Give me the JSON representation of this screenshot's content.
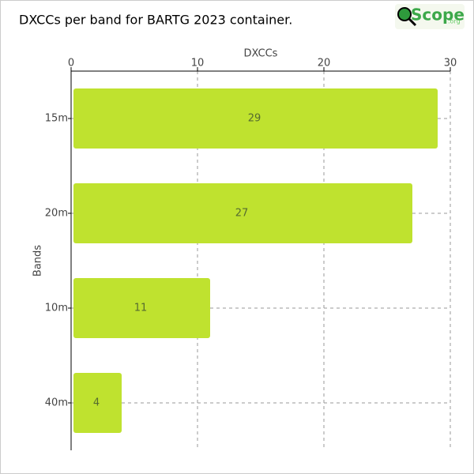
{
  "chart_data": {
    "type": "bar",
    "orientation": "horizontal",
    "title": "DXCCs per band for BARTG 2023 container.",
    "xlabel": "DXCCs",
    "ylabel": "Bands",
    "categories": [
      "15m",
      "20m",
      "10m",
      "40m"
    ],
    "values": [
      29,
      27,
      11,
      4
    ],
    "color": "#bfe22f",
    "xlim": [
      0,
      30
    ],
    "xticks": [
      0,
      10,
      20,
      30
    ],
    "grid": true
  },
  "logo": {
    "text": "Scope",
    "suffix": ".org"
  }
}
